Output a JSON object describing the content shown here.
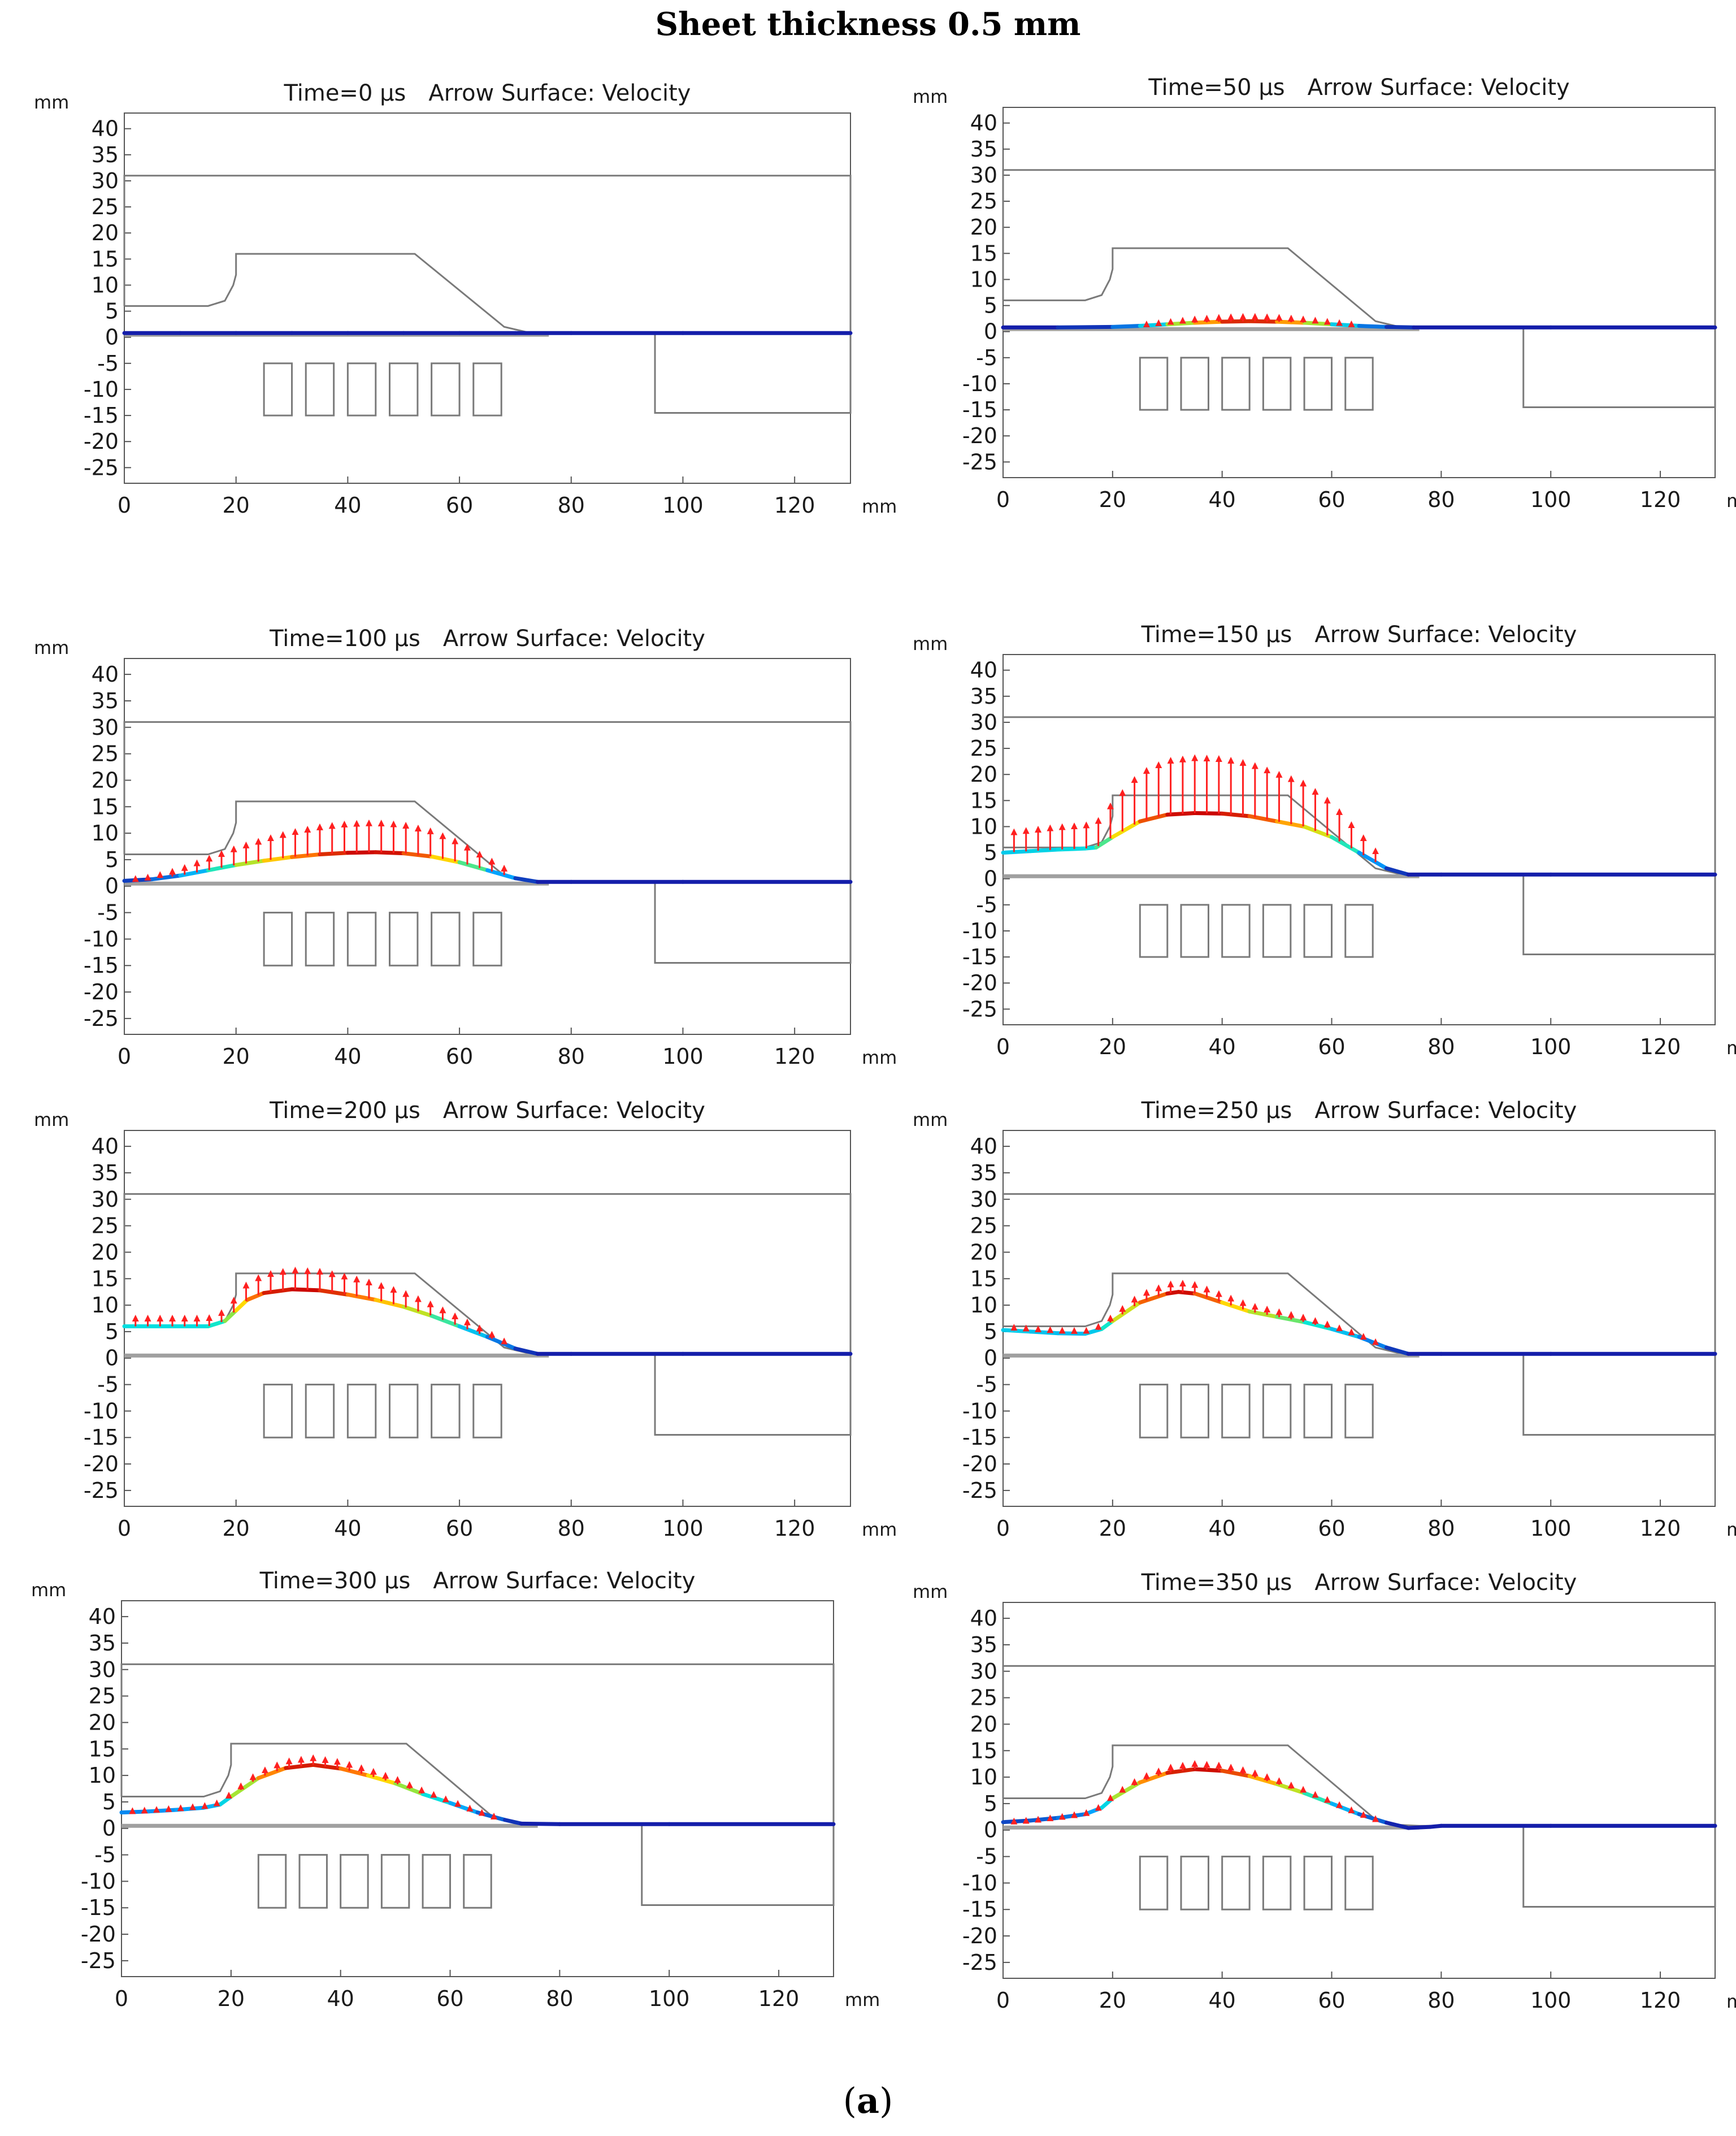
{
  "figure": {
    "title": "Sheet thickness 0.5 mm",
    "caption_open": "(",
    "caption_letter": "a",
    "caption_close": ")"
  },
  "chart_data": {
    "type": "line",
    "series_label": "Arrow Surface: Velocity",
    "xlabel": "mm",
    "ylabel": "mm",
    "xlim": [
      0,
      130
    ],
    "ylim": [
      -28,
      43
    ],
    "x_ticks": [
      0,
      20,
      40,
      60,
      80,
      100,
      120
    ],
    "y_ticks": [
      40,
      35,
      30,
      25,
      20,
      15,
      10,
      5,
      0,
      -5,
      -10,
      -15,
      -20,
      -25
    ],
    "geometry": {
      "die_outline": [
        [
          0,
          6
        ],
        [
          15,
          6
        ],
        [
          18,
          7
        ],
        [
          19.5,
          10
        ],
        [
          20,
          12
        ],
        [
          20,
          16
        ],
        [
          52,
          16
        ],
        [
          68,
          2
        ],
        [
          72,
          1
        ],
        [
          76,
          0.8
        ],
        [
          130,
          0.8
        ],
        [
          130,
          31
        ],
        [
          0,
          31
        ],
        [
          0,
          6
        ]
      ],
      "right_block": [
        [
          95,
          0.8
        ],
        [
          95,
          -14.5
        ],
        [
          130,
          -14.5
        ],
        [
          130,
          0.8
        ]
      ],
      "coils": [
        {
          "x": 25,
          "w": 5
        },
        {
          "x": 32.5,
          "w": 5
        },
        {
          "x": 40,
          "w": 5
        },
        {
          "x": 47.5,
          "w": 5
        },
        {
          "x": 55,
          "w": 5
        },
        {
          "x": 62.5,
          "w": 5
        }
      ],
      "coil_y_range": [
        -15,
        -5
      ],
      "sheet_rest_y": 0.8
    },
    "panels": [
      {
        "time": "Time=0 µs",
        "sheet": [
          [
            0,
            0.8
          ],
          [
            10,
            0.8
          ],
          [
            20,
            0.8
          ],
          [
            30,
            0.8
          ],
          [
            40,
            0.8
          ],
          [
            50,
            0.8
          ],
          [
            60,
            0.8
          ],
          [
            70,
            0.8
          ],
          [
            80,
            0.8
          ],
          [
            100,
            0.8
          ],
          [
            130,
            0.8
          ]
        ],
        "arrow_length_factor": 0
      },
      {
        "time": "Time=50 µs",
        "sheet": [
          [
            0,
            0.8
          ],
          [
            10,
            0.8
          ],
          [
            20,
            0.9
          ],
          [
            25,
            1.1
          ],
          [
            30,
            1.4
          ],
          [
            35,
            1.7
          ],
          [
            40,
            1.9
          ],
          [
            45,
            2.0
          ],
          [
            50,
            1.9
          ],
          [
            55,
            1.7
          ],
          [
            60,
            1.4
          ],
          [
            65,
            1.1
          ],
          [
            70,
            0.9
          ],
          [
            75,
            0.8
          ],
          [
            100,
            0.8
          ],
          [
            130,
            0.8
          ]
        ],
        "arrow_length_factor": 0.8
      },
      {
        "time": "Time=100 µs",
        "sheet": [
          [
            0,
            1
          ],
          [
            5,
            1.3
          ],
          [
            10,
            2
          ],
          [
            15,
            3
          ],
          [
            20,
            4
          ],
          [
            25,
            4.8
          ],
          [
            30,
            5.5
          ],
          [
            35,
            6
          ],
          [
            40,
            6.3
          ],
          [
            45,
            6.4
          ],
          [
            50,
            6.2
          ],
          [
            55,
            5.6
          ],
          [
            60,
            4.5
          ],
          [
            65,
            3
          ],
          [
            70,
            1.5
          ],
          [
            74,
            0.8
          ],
          [
            80,
            0.8
          ],
          [
            100,
            0.8
          ],
          [
            130,
            0.8
          ]
        ],
        "arrow_length_factor": 1.0
      },
      {
        "time": "Time=150 µs",
        "sheet": [
          [
            0,
            5
          ],
          [
            5,
            5.3
          ],
          [
            10,
            5.6
          ],
          [
            15,
            5.8
          ],
          [
            17,
            6
          ],
          [
            20,
            8
          ],
          [
            25,
            11
          ],
          [
            30,
            12.3
          ],
          [
            35,
            12.6
          ],
          [
            40,
            12.5
          ],
          [
            45,
            12
          ],
          [
            50,
            11
          ],
          [
            55,
            10
          ],
          [
            60,
            8
          ],
          [
            65,
            5
          ],
          [
            70,
            2
          ],
          [
            74,
            0.8
          ],
          [
            80,
            0.8
          ],
          [
            100,
            0.8
          ],
          [
            130,
            0.8
          ]
        ],
        "arrow_length_factor": 0.9
      },
      {
        "time": "Time=200 µs",
        "sheet": [
          [
            0,
            6
          ],
          [
            5,
            6
          ],
          [
            10,
            6
          ],
          [
            15,
            6
          ],
          [
            18,
            7
          ],
          [
            20,
            9
          ],
          [
            22,
            11
          ],
          [
            25,
            12.3
          ],
          [
            30,
            13
          ],
          [
            35,
            12.8
          ],
          [
            40,
            12
          ],
          [
            45,
            11
          ],
          [
            50,
            9.7
          ],
          [
            55,
            8
          ],
          [
            60,
            6
          ],
          [
            65,
            4
          ],
          [
            70,
            1.8
          ],
          [
            74,
            0.8
          ],
          [
            80,
            0.8
          ],
          [
            100,
            0.8
          ],
          [
            130,
            0.8
          ]
        ],
        "arrow_length_factor": 0.3
      },
      {
        "time": "Time=250 µs",
        "sheet": [
          [
            0,
            5.3
          ],
          [
            5,
            5
          ],
          [
            10,
            4.7
          ],
          [
            15,
            4.6
          ],
          [
            18,
            5.5
          ],
          [
            20,
            7
          ],
          [
            25,
            10.5
          ],
          [
            30,
            12.2
          ],
          [
            32,
            12.5
          ],
          [
            35,
            12.2
          ],
          [
            40,
            10.5
          ],
          [
            45,
            8.8
          ],
          [
            50,
            7.8
          ],
          [
            55,
            6.8
          ],
          [
            60,
            5.5
          ],
          [
            65,
            4
          ],
          [
            70,
            2
          ],
          [
            74,
            0.8
          ],
          [
            80,
            0.8
          ],
          [
            100,
            0.8
          ],
          [
            130,
            0.8
          ]
        ],
        "arrow_length_factor": 0.15
      },
      {
        "time": "Time=300 µs",
        "sheet": [
          [
            0,
            3
          ],
          [
            5,
            3.2
          ],
          [
            10,
            3.5
          ],
          [
            15,
            3.9
          ],
          [
            18,
            4.5
          ],
          [
            20,
            6
          ],
          [
            25,
            9.5
          ],
          [
            30,
            11.4
          ],
          [
            35,
            12
          ],
          [
            40,
            11.3
          ],
          [
            45,
            10
          ],
          [
            50,
            8.5
          ],
          [
            55,
            6.5
          ],
          [
            60,
            4.8
          ],
          [
            65,
            3
          ],
          [
            70,
            1.6
          ],
          [
            73,
            0.9
          ],
          [
            80,
            0.8
          ],
          [
            100,
            0.8
          ],
          [
            130,
            0.8
          ]
        ],
        "arrow_length_factor": 0.12
      },
      {
        "time": "Time=350 µs",
        "sheet": [
          [
            0,
            1.5
          ],
          [
            5,
            1.8
          ],
          [
            10,
            2.3
          ],
          [
            15,
            3
          ],
          [
            18,
            4.2
          ],
          [
            20,
            6
          ],
          [
            25,
            9
          ],
          [
            30,
            10.8
          ],
          [
            35,
            11.5
          ],
          [
            40,
            11.2
          ],
          [
            45,
            10.2
          ],
          [
            50,
            8.7
          ],
          [
            55,
            7
          ],
          [
            60,
            5
          ],
          [
            65,
            3
          ],
          [
            70,
            1.4
          ],
          [
            74,
            0.4
          ],
          [
            78,
            0.6
          ],
          [
            80,
            0.8
          ],
          [
            100,
            0.8
          ],
          [
            130,
            0.8
          ]
        ],
        "arrow_length_factor": 0.1
      }
    ]
  }
}
